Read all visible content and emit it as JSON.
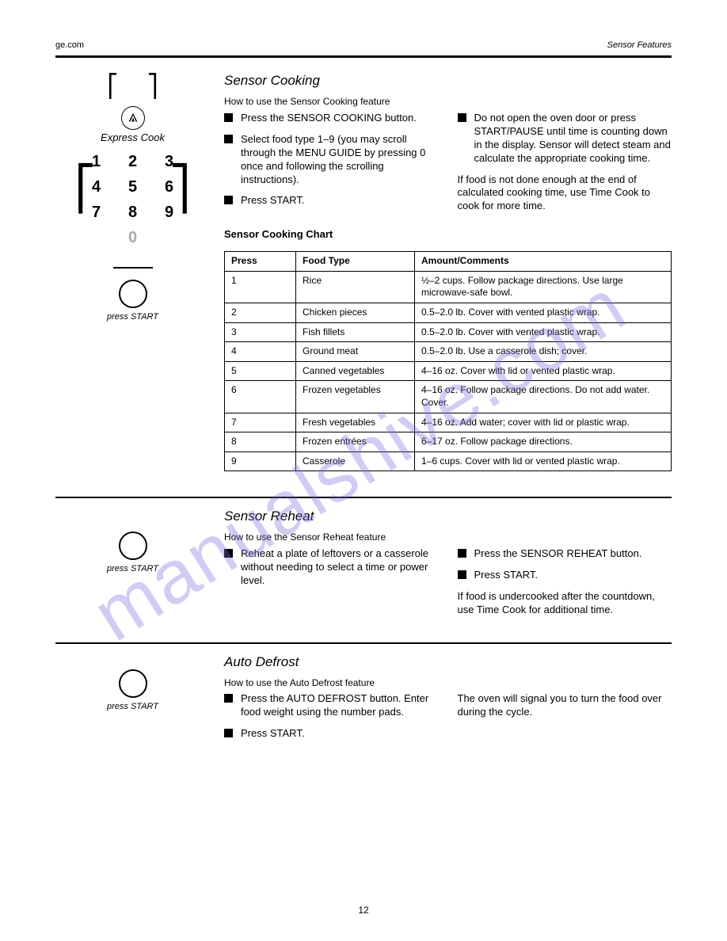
{
  "header": {
    "site": "ge.com",
    "section": "Sensor Features"
  },
  "watermark": "manualshive.com",
  "sensor_cooking": {
    "title": "Sensor Cooking",
    "intro": "How to use the Sensor Cooking feature",
    "keypad_label": "Express Cook",
    "keys": [
      [
        "1",
        "2",
        "3"
      ],
      [
        "4",
        "5",
        "6"
      ],
      [
        "7",
        "8",
        "9"
      ],
      [
        "",
        "0",
        ""
      ]
    ],
    "start_label": "press START",
    "left_steps": [
      "Press the SENSOR COOKING button.",
      "Select food type 1–9 (you may scroll through the MENU GUIDE by pressing 0 once and following the scrolling instructions).",
      "Press START."
    ],
    "right_steps": [
      "Do not open the oven door or press START/PAUSE until time is counting down in the display. Sensor will detect steam and calculate the appropriate cooking time."
    ],
    "note": "If food is not done enough at the end of calculated cooking time, use Time Cook to cook for more time.",
    "caption": "Sensor Cooking Chart",
    "table": {
      "cols": [
        "Press",
        "Food Type",
        "Amount/Comments"
      ],
      "rows": [
        [
          "1",
          "Rice",
          "½–2 cups. Follow package directions. Use large microwave-safe bowl."
        ],
        [
          "2",
          "Chicken pieces",
          "0.5–2.0 lb. Cover with vented plastic wrap."
        ],
        [
          "3",
          "Fish fillets",
          "0.5–2.0 lb. Cover with vented plastic wrap."
        ],
        [
          "4",
          "Ground meat",
          "0.5–2.0 lb. Use a casserole dish; cover."
        ],
        [
          "5",
          "Canned vegetables",
          "4–16 oz. Cover with lid or vented plastic wrap."
        ],
        [
          "6",
          "Frozen vegetables",
          "4–16 oz. Follow package directions. Do not add water. Cover."
        ],
        [
          "7",
          "Fresh vegetables",
          "4–16 oz. Add water; cover with lid or plastic wrap."
        ],
        [
          "8",
          "Frozen entrées",
          "6–17 oz. Follow package directions."
        ],
        [
          "9",
          "Casserole",
          "1–6 cups. Cover with lid or vented plastic wrap."
        ]
      ]
    }
  },
  "sensor_reheat": {
    "title": "Sensor Reheat",
    "intro": "How to use the Sensor Reheat feature",
    "start_label": "press START",
    "left_steps": [
      "Reheat a plate of leftovers or a casserole without needing to select a time or power level."
    ],
    "right_steps": [
      "Press the SENSOR REHEAT button.",
      "Press START."
    ],
    "note": "If food is undercooked after the countdown, use Time Cook for additional time."
  },
  "auto_defrost": {
    "title": "Auto Defrost",
    "intro": "How to use the Auto Defrost feature",
    "start_label": "press START",
    "left_steps": [
      "Press the AUTO DEFROST button. Enter food weight using the number pads.",
      "Press START."
    ],
    "note": "The oven will signal you to turn the food over during the cycle."
  },
  "page_number": "12"
}
